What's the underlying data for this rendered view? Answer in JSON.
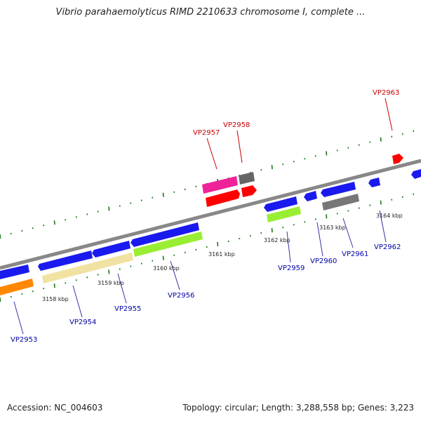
{
  "title": "Vibrio parahaemolyticus RIMD 2210633 chromosome I, complete ...",
  "footer": {
    "accession": "Accession: NC_004603",
    "summary": "Topology: circular; Length: 3,288,558 bp; Genes: 3,223"
  },
  "colors": {
    "backbone": "#888888",
    "tick": "#1a7a1a",
    "label_forward": "#cc0000",
    "label_reverse": "#0000aa"
  },
  "scale_labels": [
    "3158 kbp",
    "3159 kbp",
    "3160 kbp",
    "3161 kbp",
    "3162 kbp",
    "3163 kbp",
    "3164 kbp"
  ],
  "genes": [
    {
      "name": "VP2953",
      "color": "#0000aa",
      "fill": "#ff8800"
    },
    {
      "name": "VP2954",
      "color": "#0000aa",
      "fill": "#f0e2a0"
    },
    {
      "name": "VP2955",
      "color": "#0000aa",
      "fill": "#f0e2a0"
    },
    {
      "name": "VP2956",
      "color": "#0000aa",
      "fill": "#99ee33"
    },
    {
      "name": "VP2957",
      "color": "#cc0000",
      "fill": "#ee2299"
    },
    {
      "name": "VP2958",
      "color": "#cc0000",
      "fill": "#666666"
    },
    {
      "name": "VP2959",
      "color": "#0000aa",
      "fill": "#99ee33"
    },
    {
      "name": "VP2960",
      "color": "#0000aa",
      "fill": "#1a1aee"
    },
    {
      "name": "VP2961",
      "color": "#0000aa",
      "fill": "#1a1aee"
    },
    {
      "name": "VP2962",
      "color": "#0000aa",
      "fill": "#777777"
    },
    {
      "name": "VP2963",
      "color": "#cc0000",
      "fill": "#ff0000"
    }
  ]
}
